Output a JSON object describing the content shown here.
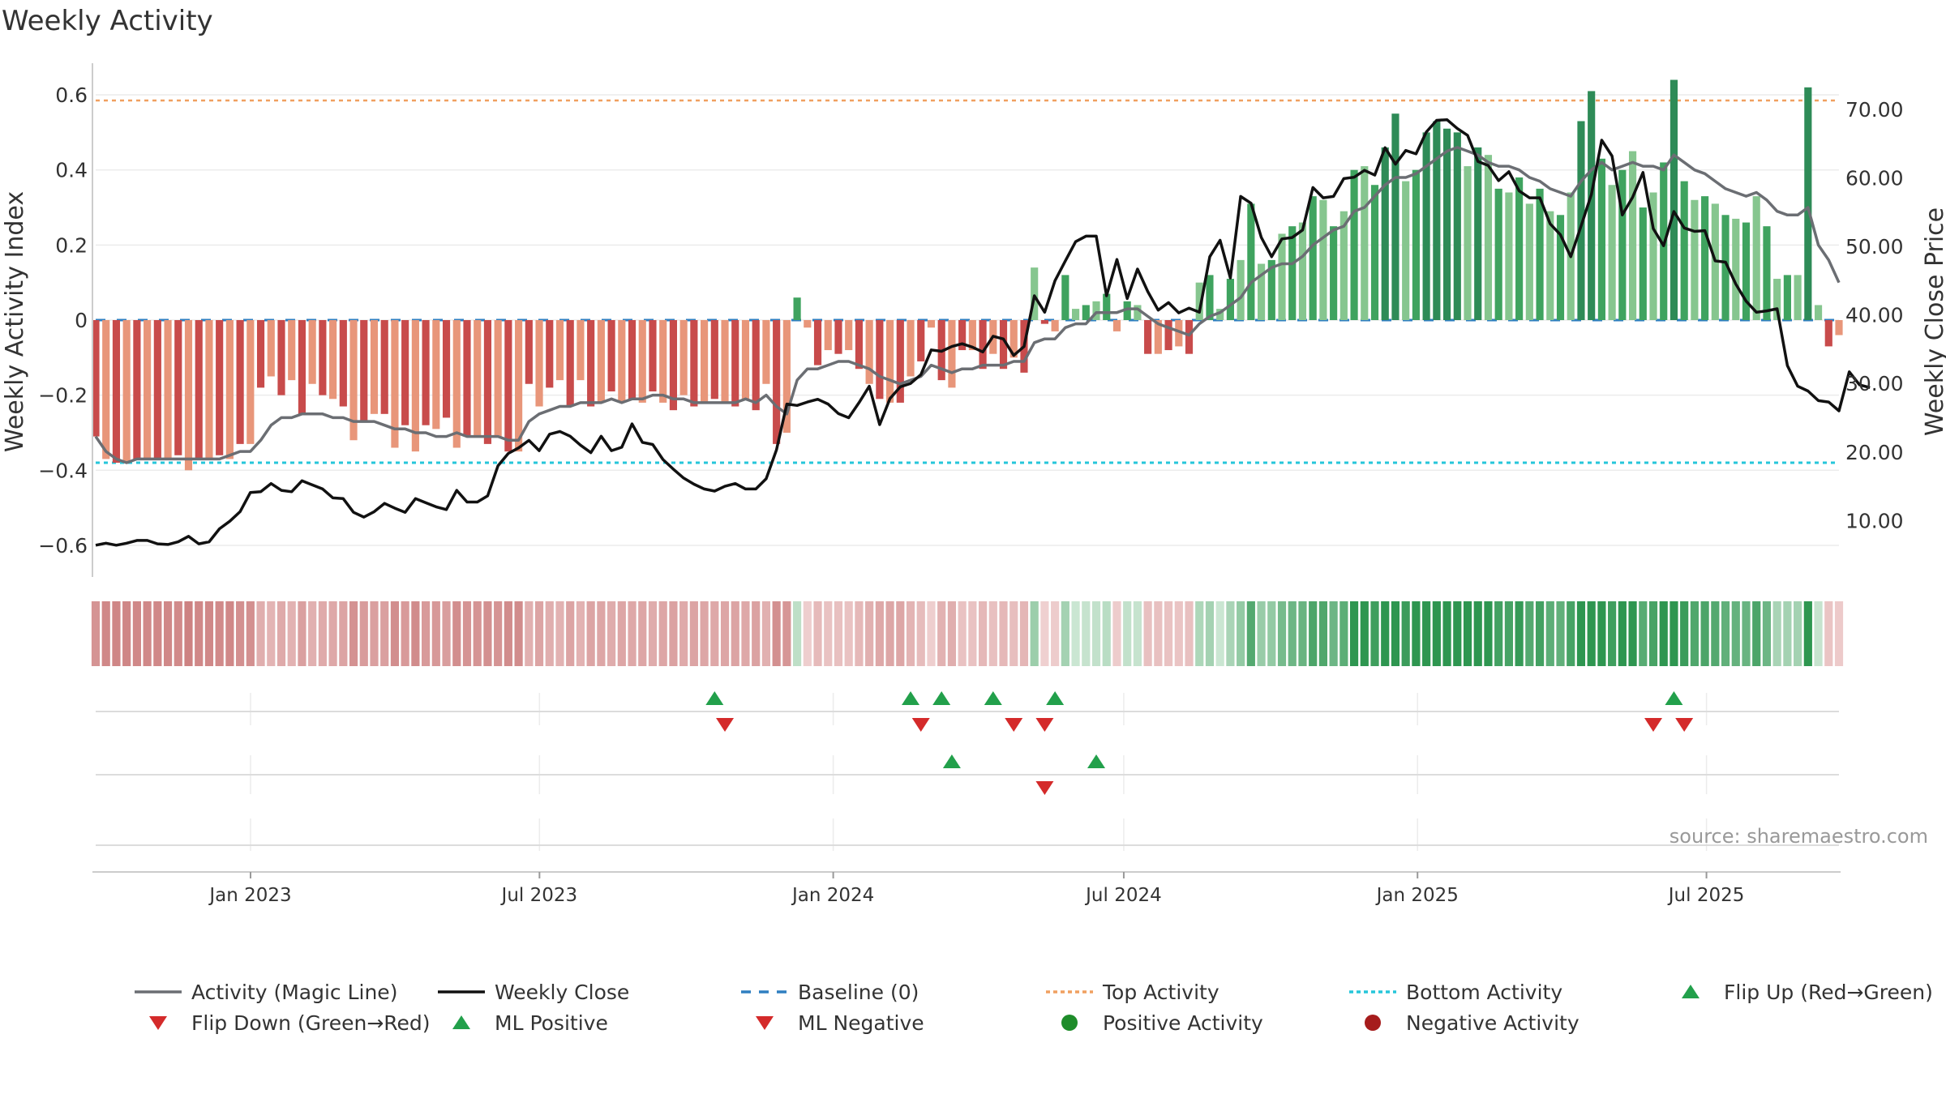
{
  "title": "Weekly Activity",
  "source": "source: sharemaestro.com",
  "colors": {
    "pos_dark": "#2e8b57",
    "pos_mid": "#3fa35f",
    "pos_light": "#86c68f",
    "neg_dark": "#c84b4b",
    "neg_light": "#e8967a",
    "magic_line": "#6b6e73",
    "close_line": "#111111",
    "baseline": "#2f7fc1",
    "top_activity": "#f0a060",
    "bottom_activity": "#26c6da",
    "flip_up": "#22a04b",
    "flip_down": "#d42a2a",
    "positive_dot": "#1e8c2a",
    "negative_dot": "#a61c1c"
  },
  "chart_data": {
    "type": "bar",
    "title": "Weekly Activity",
    "ylabel_left": "Weekly Activity Index",
    "ylabel_right": "Weekly Close Price",
    "ylim_left": [
      -0.68,
      0.68
    ],
    "ylim_right": [
      2.0,
      76.5
    ],
    "left_ticks": [
      0.6,
      0.4,
      0.2,
      0,
      -0.2,
      -0.4,
      -0.6
    ],
    "left_tick_labels": [
      "0.6",
      "0.4",
      "0.2",
      "0",
      "−0.2",
      "−0.4",
      "−0.6"
    ],
    "right_ticks": [
      70,
      60,
      50,
      40,
      30,
      20,
      10
    ],
    "right_tick_labels": [
      "70.00",
      "60.00",
      "50.00",
      "40.00",
      "30.00",
      "20.00",
      "10.00"
    ],
    "x_range": [
      "2022-09-26",
      "2025-09-22"
    ],
    "x_ticks": [
      {
        "label": "Jan 2023",
        "date": "2023-01-01"
      },
      {
        "label": "Jul 2023",
        "date": "2023-07-01"
      },
      {
        "label": "Jan 2024",
        "date": "2024-01-01"
      },
      {
        "label": "Jul 2024",
        "date": "2024-07-01"
      },
      {
        "label": "Jan 2025",
        "date": "2025-01-01"
      },
      {
        "label": "Jul 2025",
        "date": "2025-07-01"
      }
    ],
    "top_activity": 0.585,
    "bottom_activity": -0.38,
    "baseline": 0,
    "activity": [
      -0.31,
      -0.37,
      -0.38,
      -0.38,
      -0.37,
      -0.37,
      -0.37,
      -0.37,
      -0.36,
      -0.4,
      -0.37,
      -0.37,
      -0.36,
      -0.37,
      -0.33,
      -0.33,
      -0.18,
      -0.15,
      -0.2,
      -0.16,
      -0.25,
      -0.17,
      -0.2,
      -0.21,
      -0.23,
      -0.32,
      -0.27,
      -0.25,
      -0.25,
      -0.34,
      -0.28,
      -0.35,
      -0.28,
      -0.29,
      -0.26,
      -0.34,
      -0.31,
      -0.31,
      -0.33,
      -0.31,
      -0.35,
      -0.35,
      -0.17,
      -0.23,
      -0.18,
      -0.16,
      -0.23,
      -0.16,
      -0.23,
      -0.22,
      -0.19,
      -0.22,
      -0.21,
      -0.22,
      -0.19,
      -0.22,
      -0.24,
      -0.2,
      -0.23,
      -0.22,
      -0.21,
      -0.22,
      -0.23,
      -0.21,
      -0.24,
      -0.17,
      -0.33,
      -0.3,
      0.06,
      -0.02,
      -0.12,
      -0.08,
      -0.09,
      -0.08,
      -0.13,
      -0.17,
      -0.21,
      -0.22,
      -0.22,
      -0.15,
      -0.11,
      -0.02,
      -0.16,
      -0.18,
      -0.08,
      -0.08,
      -0.13,
      -0.09,
      -0.13,
      -0.1,
      -0.14,
      0.14,
      -0.01,
      -0.03,
      0.12,
      0.03,
      0.04,
      0.05,
      0.07,
      -0.03,
      0.05,
      0.04,
      -0.09,
      -0.09,
      -0.08,
      -0.07,
      -0.09,
      0.1,
      0.12,
      0.03,
      0.11,
      0.16,
      0.31,
      0.15,
      0.16,
      0.23,
      0.25,
      0.26,
      0.33,
      0.32,
      0.25,
      0.29,
      0.4,
      0.41,
      0.36,
      0.46,
      0.55,
      0.37,
      0.4,
      0.5,
      0.53,
      0.51,
      0.5,
      0.41,
      0.46,
      0.44,
      0.35,
      0.34,
      0.38,
      0.31,
      0.35,
      0.29,
      0.28,
      0.34,
      0.53,
      0.61,
      0.43,
      0.36,
      0.4,
      0.45,
      0.3,
      0.34,
      0.42,
      0.64,
      0.37,
      0.32,
      0.33,
      0.31,
      0.28,
      0.27,
      0.26,
      0.33,
      0.25,
      0.11,
      0.12,
      0.12,
      0.62,
      0.04,
      -0.07,
      -0.04
    ],
    "magic_line": [
      -0.31,
      -0.35,
      -0.37,
      -0.38,
      -0.37,
      -0.37,
      -0.37,
      -0.37,
      -0.37,
      -0.37,
      -0.37,
      -0.37,
      -0.37,
      -0.36,
      -0.35,
      -0.35,
      -0.32,
      -0.28,
      -0.26,
      -0.26,
      -0.25,
      -0.25,
      -0.25,
      -0.26,
      -0.26,
      -0.27,
      -0.27,
      -0.27,
      -0.28,
      -0.29,
      -0.29,
      -0.3,
      -0.3,
      -0.31,
      -0.31,
      -0.3,
      -0.31,
      -0.31,
      -0.31,
      -0.31,
      -0.32,
      -0.32,
      -0.27,
      -0.25,
      -0.24,
      -0.23,
      -0.23,
      -0.22,
      -0.22,
      -0.22,
      -0.21,
      -0.22,
      -0.21,
      -0.21,
      -0.2,
      -0.2,
      -0.21,
      -0.21,
      -0.22,
      -0.22,
      -0.22,
      -0.22,
      -0.22,
      -0.21,
      -0.22,
      -0.2,
      -0.23,
      -0.25,
      -0.16,
      -0.13,
      -0.13,
      -0.12,
      -0.11,
      -0.11,
      -0.12,
      -0.13,
      -0.15,
      -0.16,
      -0.17,
      -0.16,
      -0.15,
      -0.12,
      -0.13,
      -0.14,
      -0.13,
      -0.13,
      -0.12,
      -0.12,
      -0.12,
      -0.11,
      -0.11,
      -0.06,
      -0.05,
      -0.05,
      -0.02,
      -0.01,
      -0.01,
      0.02,
      0.02,
      0.02,
      0.03,
      0.03,
      0.01,
      -0.01,
      -0.02,
      -0.03,
      -0.04,
      -0.01,
      0.01,
      0.02,
      0.04,
      0.06,
      0.1,
      0.12,
      0.14,
      0.15,
      0.15,
      0.17,
      0.2,
      0.22,
      0.24,
      0.25,
      0.29,
      0.3,
      0.33,
      0.36,
      0.38,
      0.38,
      0.39,
      0.41,
      0.43,
      0.45,
      0.46,
      0.45,
      0.44,
      0.42,
      0.41,
      0.41,
      0.4,
      0.38,
      0.37,
      0.35,
      0.34,
      0.33,
      0.37,
      0.4,
      0.42,
      0.4,
      0.41,
      0.42,
      0.41,
      0.41,
      0.4,
      0.44,
      0.42,
      0.4,
      0.39,
      0.37,
      0.35,
      0.34,
      0.33,
      0.34,
      0.32,
      0.29,
      0.28,
      0.28,
      0.3,
      0.2,
      0.16,
      0.1
    ],
    "weekly_close": [
      6.4,
      6.7,
      6.4,
      6.7,
      7.1,
      7.1,
      6.6,
      6.5,
      6.9,
      7.7,
      6.6,
      6.9,
      8.8,
      9.9,
      11.3,
      14.1,
      14.2,
      15.4,
      14.4,
      14.2,
      15.8,
      15.2,
      14.6,
      13.3,
      13.2,
      11.2,
      10.5,
      11.3,
      12.5,
      11.8,
      11.2,
      13.2,
      12.6,
      12.0,
      11.6,
      14.4,
      12.7,
      12.7,
      13.6,
      18.0,
      19.8,
      20.6,
      21.7,
      20.2,
      22.6,
      23.0,
      22.3,
      21.0,
      19.9,
      22.3,
      20.2,
      20.7,
      24.1,
      21.4,
      21.1,
      18.9,
      17.5,
      16.2,
      15.3,
      14.6,
      14.3,
      15.0,
      15.4,
      14.6,
      14.6,
      16.1,
      20.3,
      27.0,
      26.8,
      27.3,
      27.7,
      27.0,
      25.6,
      25.0,
      27.2,
      29.6,
      24.0,
      27.8,
      29.5,
      30.0,
      31.3,
      34.9,
      34.7,
      35.4,
      35.8,
      35.3,
      34.6,
      36.9,
      36.5,
      34.1,
      35.4,
      42.8,
      40.4,
      45.0,
      47.9,
      50.7,
      51.5,
      51.5,
      42.8,
      48.1,
      42.4,
      46.7,
      43.4,
      40.7,
      41.8,
      40.3,
      41.0,
      40.4,
      48.5,
      50.9,
      45.4,
      57.3,
      56.3,
      51.3,
      48.5,
      51.1,
      51.3,
      52.4,
      58.6,
      57.1,
      57.3,
      59.9,
      60.1,
      61.1,
      60.4,
      64.4,
      62.0,
      64.0,
      63.5,
      66.7,
      68.4,
      68.5,
      67.2,
      66.2,
      62.4,
      61.8,
      59.6,
      60.9,
      58.1,
      57.1,
      57.1,
      53.3,
      51.7,
      48.5,
      53.0,
      57.6,
      65.5,
      63.2,
      54.6,
      57.2,
      60.8,
      52.6,
      50.1,
      55.1,
      52.7,
      52.2,
      52.3,
      47.9,
      47.7,
      44.5,
      42.0,
      40.4,
      40.6,
      40.9,
      32.6,
      29.6,
      28.9,
      27.5,
      27.3,
      26.0,
      31.7,
      29.8,
      29.4
    ],
    "flip_up_weeks": [
      60,
      79,
      82,
      87,
      93,
      153
    ],
    "flip_down_weeks": [
      61,
      80,
      89,
      92,
      151,
      154
    ],
    "ml_positive_weeks": [
      83,
      97
    ],
    "ml_negative_weeks": [
      92
    ],
    "panels": [
      "flips",
      "ml_signals",
      "activity_dots"
    ],
    "legend": [
      {
        "label": "Activity (Magic Line)",
        "marker": "line-solid-gray"
      },
      {
        "label": "Weekly Close",
        "marker": "line-solid-black"
      },
      {
        "label": "Baseline (0)",
        "marker": "line-dash-blue"
      },
      {
        "label": "Top Activity",
        "marker": "line-dot-orange"
      },
      {
        "label": "Bottom Activity",
        "marker": "line-dot-cyan"
      },
      {
        "label": "Flip Up (Red→Green)",
        "marker": "triangle-up-green"
      },
      {
        "label": "Flip Down (Green→Red)",
        "marker": "triangle-down-red"
      },
      {
        "label": "ML Positive",
        "marker": "triangle-up-green"
      },
      {
        "label": "ML Negative",
        "marker": "triangle-down-red"
      },
      {
        "label": "Positive Activity",
        "marker": "circle-green"
      },
      {
        "label": "Negative Activity",
        "marker": "circle-darkred"
      }
    ],
    "legend_placement": "bottom"
  }
}
